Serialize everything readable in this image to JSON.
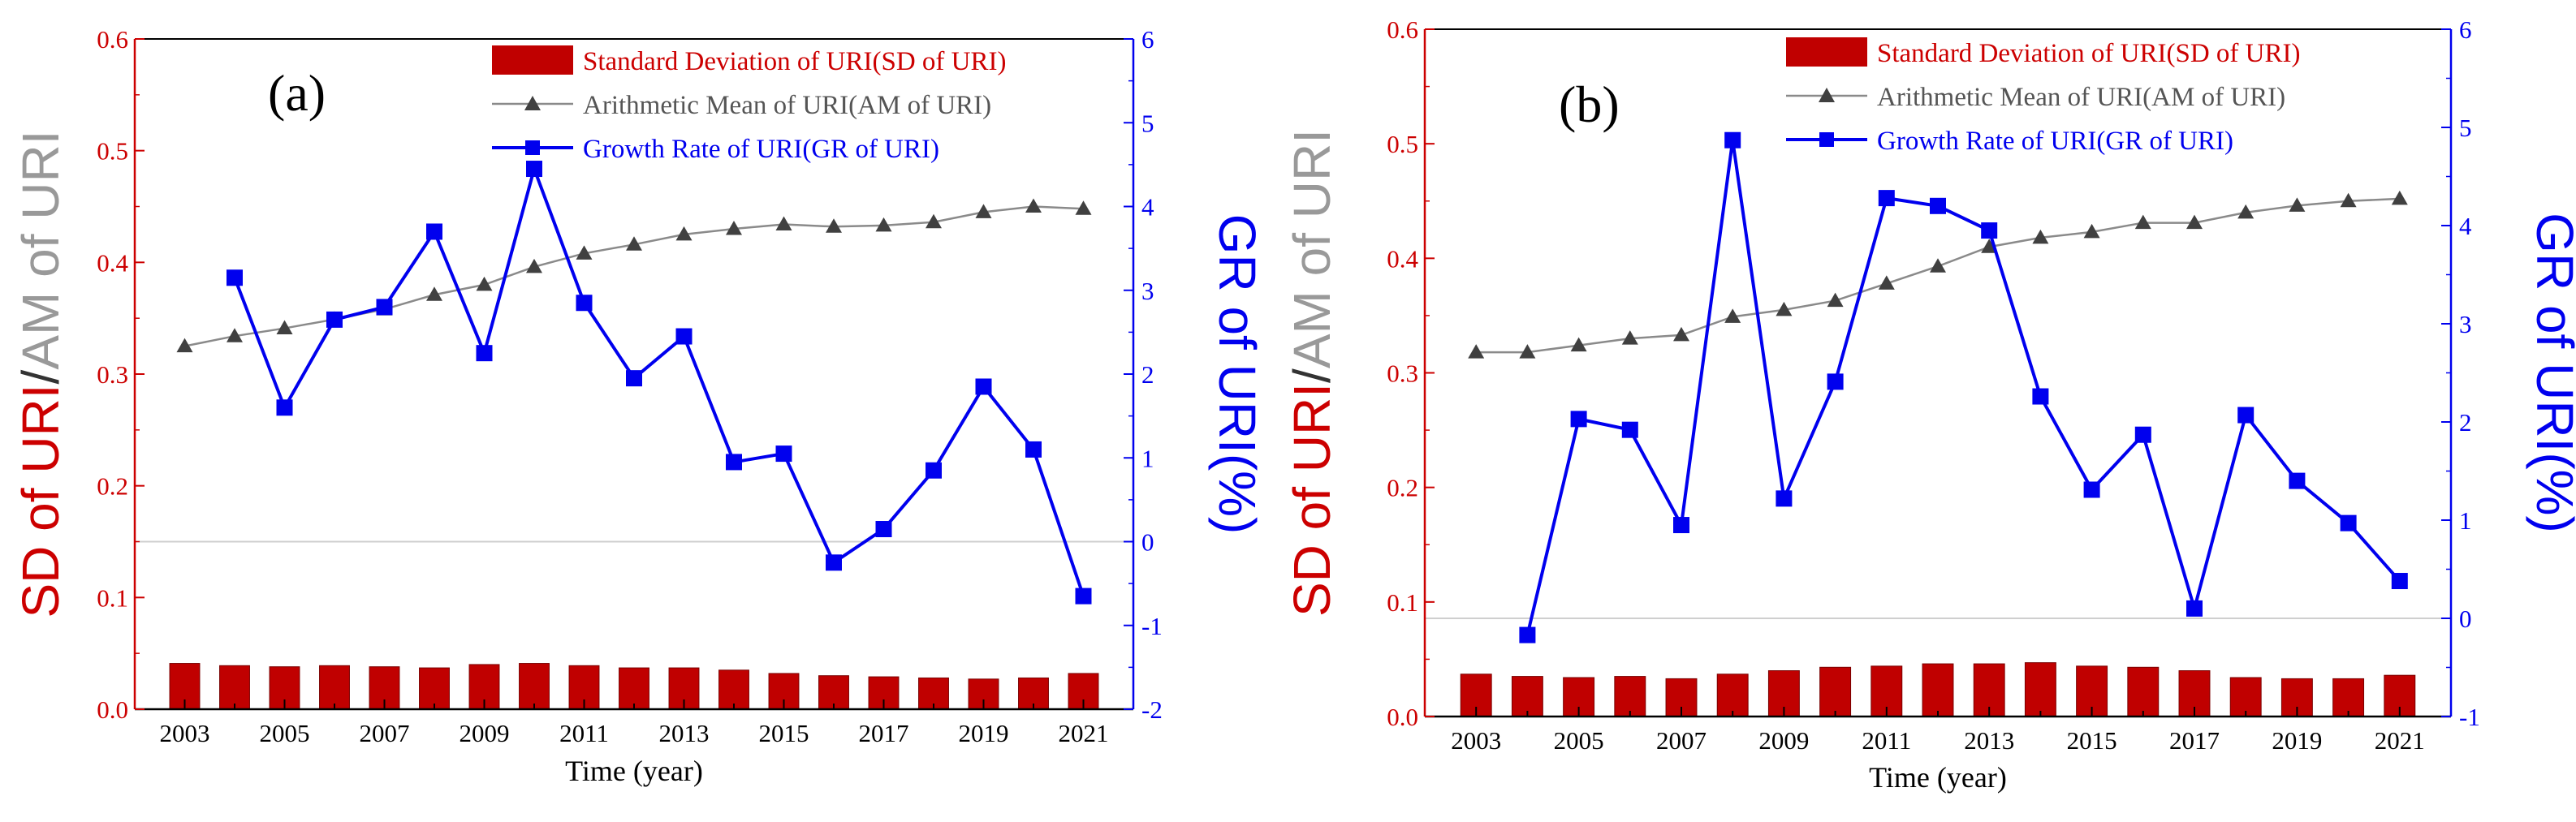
{
  "colors": {
    "sd": "#c00000",
    "am_line": "#8a8a8a",
    "am_marker": "#404040",
    "gr": "#0000ee",
    "left_axis": "#cc0000",
    "right_axis": "#0000ee",
    "zero_line": "#cfcfcf"
  },
  "chart_data": [
    {
      "type": "bar+line",
      "panel_label": "(a)",
      "xlabel": "Time (year)",
      "ylabel_parts": [
        "SD of URI",
        "/",
        "AM of URI"
      ],
      "y2label": "GR of URI(%)",
      "ylim": [
        0,
        0.6
      ],
      "y2lim": [
        -2,
        6
      ],
      "x_ticks": [
        "2003",
        "2005",
        "2007",
        "2009",
        "2011",
        "2013",
        "2015",
        "2017",
        "2019",
        "2021"
      ],
      "y_ticks": [
        "0.0",
        "0.1",
        "0.2",
        "0.3",
        "0.4",
        "0.5",
        "0.6"
      ],
      "y2_ticks": [
        "-2",
        "-1",
        "0",
        "1",
        "2",
        "3",
        "4",
        "5",
        "6"
      ],
      "legend": [
        "Standard Deviation of URI(SD of URI)",
        "Arithmetic Mean of URI(AM of URI)",
        "Growth Rate of URI(GR of URI)"
      ],
      "years": [
        2003,
        2004,
        2005,
        2006,
        2007,
        2008,
        2009,
        2010,
        2011,
        2012,
        2013,
        2014,
        2015,
        2016,
        2017,
        2018,
        2019,
        2020,
        2021
      ],
      "sd": [
        0.041,
        0.039,
        0.038,
        0.039,
        0.038,
        0.037,
        0.04,
        0.041,
        0.039,
        0.037,
        0.037,
        0.035,
        0.032,
        0.03,
        0.029,
        0.028,
        0.027,
        0.028,
        0.032
      ],
      "am": [
        0.325,
        0.334,
        0.341,
        0.349,
        0.358,
        0.371,
        0.38,
        0.396,
        0.408,
        0.416,
        0.425,
        0.43,
        0.434,
        0.432,
        0.433,
        0.436,
        0.445,
        0.45,
        0.448
      ],
      "gr_years": [
        2004,
        2005,
        2006,
        2007,
        2008,
        2009,
        2010,
        2011,
        2012,
        2013,
        2014,
        2015,
        2016,
        2017,
        2018,
        2019,
        2020,
        2021
      ],
      "gr": [
        3.15,
        1.6,
        2.65,
        2.8,
        3.7,
        2.25,
        4.45,
        2.85,
        1.95,
        2.45,
        0.95,
        1.05,
        -0.25,
        0.15,
        0.85,
        1.85,
        1.1,
        -0.65
      ]
    },
    {
      "type": "bar+line",
      "panel_label": "(b)",
      "xlabel": "Time (year)",
      "ylabel_parts": [
        "SD of URI",
        "/",
        "AM of URI"
      ],
      "y2label": "GR of URI(%)",
      "ylim": [
        0,
        0.6
      ],
      "y2lim": [
        -1,
        6
      ],
      "x_ticks": [
        "2003",
        "2005",
        "2007",
        "2009",
        "2011",
        "2013",
        "2015",
        "2017",
        "2019",
        "2021"
      ],
      "y_ticks": [
        "0.0",
        "0.1",
        "0.2",
        "0.3",
        "0.4",
        "0.5",
        "0.6"
      ],
      "y2_ticks": [
        "-1",
        "0",
        "1",
        "2",
        "3",
        "4",
        "5",
        "6"
      ],
      "legend": [
        "Standard Deviation of URI(SD of URI)",
        "Arithmetic Mean of URI(AM of URI)",
        "Growth Rate of URI(GR of URI)"
      ],
      "years": [
        2003,
        2004,
        2005,
        2006,
        2007,
        2008,
        2009,
        2010,
        2011,
        2012,
        2013,
        2014,
        2015,
        2016,
        2017,
        2018,
        2019,
        2020,
        2021
      ],
      "sd": [
        0.037,
        0.035,
        0.034,
        0.035,
        0.033,
        0.037,
        0.04,
        0.043,
        0.044,
        0.046,
        0.046,
        0.047,
        0.044,
        0.043,
        0.04,
        0.034,
        0.033,
        0.033,
        0.036
      ],
      "am": [
        0.318,
        0.318,
        0.324,
        0.33,
        0.333,
        0.349,
        0.355,
        0.363,
        0.378,
        0.393,
        0.41,
        0.418,
        0.423,
        0.431,
        0.431,
        0.44,
        0.446,
        0.45,
        0.452
      ],
      "gr_years": [
        2004,
        2005,
        2006,
        2007,
        2008,
        2009,
        2010,
        2011,
        2012,
        2013,
        2014,
        2015,
        2016,
        2017,
        2018,
        2019,
        2020,
        2021
      ],
      "gr": [
        -0.17,
        2.03,
        1.92,
        0.95,
        4.87,
        1.22,
        2.41,
        4.28,
        4.2,
        3.95,
        2.26,
        1.31,
        1.87,
        0.1,
        2.07,
        1.4,
        0.97,
        0.38
      ]
    }
  ]
}
